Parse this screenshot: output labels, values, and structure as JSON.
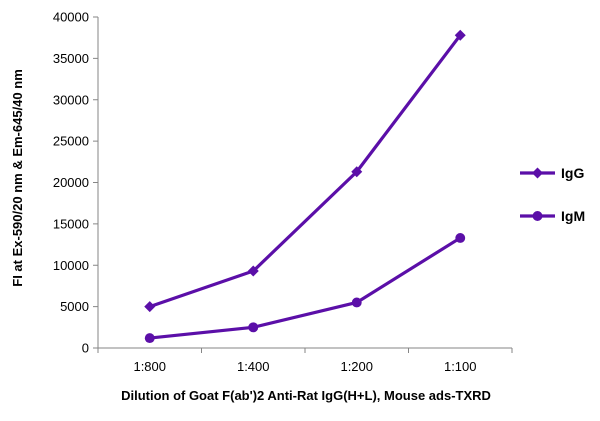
{
  "chart_data": {
    "type": "line",
    "categories": [
      "1:800",
      "1:400",
      "1:200",
      "1:100"
    ],
    "series": [
      {
        "name": "IgG",
        "values": [
          5000,
          9300,
          21300,
          37800
        ],
        "marker": "diamond"
      },
      {
        "name": "IgM",
        "values": [
          1200,
          2500,
          5500,
          13300
        ],
        "marker": "circle"
      }
    ],
    "xlabel": "Dilution of Goat F(ab')2 Anti-Rat IgG(H+L), Mouse ads-TXRD",
    "ylabel": "FI at Ex-590/20 nm & Em-645/40 nm",
    "ylim": [
      0,
      40000
    ],
    "yticks": [
      0,
      5000,
      10000,
      15000,
      20000,
      25000,
      30000,
      35000,
      40000
    ],
    "grid": false,
    "legend": "right",
    "colors": {
      "series": "#5b0fa8",
      "axis": "#868686"
    }
  }
}
